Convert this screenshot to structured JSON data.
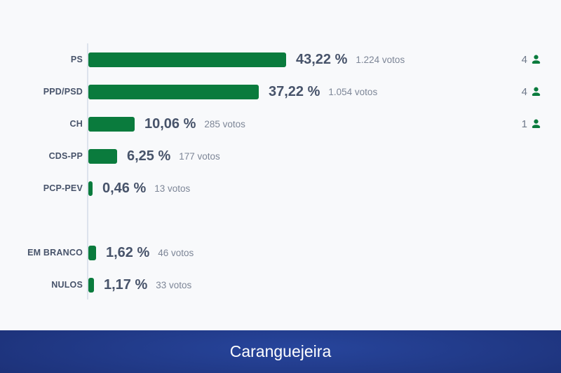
{
  "banner": {
    "title": "Caranguejeira"
  },
  "colors": {
    "background": "#f8f9fb",
    "bar_green": "#0a7b3d",
    "text_slate": "#47536a",
    "text_muted": "#7d8697",
    "axis_line": "#dde3ec",
    "banner_navy_center": "#27459c",
    "banner_navy_edge": "#16235a",
    "banner_text": "#ffffff"
  },
  "chart_data": {
    "type": "bar",
    "orientation": "horizontal",
    "unit": "%",
    "title": "Caranguejeira",
    "xlim": [
      0,
      46
    ],
    "grid": false,
    "legend": false,
    "bar_color": "#0a7b3d",
    "categories": [
      "PS",
      "PPD/PSD",
      "CH",
      "CDS-PP",
      "PCP-PEV",
      "EM BRANCO",
      "NULOS"
    ],
    "values": [
      43.22,
      37.22,
      10.06,
      6.25,
      0.46,
      1.62,
      1.17
    ],
    "rows": [
      {
        "party": "PS",
        "percent": 43.22,
        "percent_label": "43,22 %",
        "votes": 1224,
        "votes_label": "1.224 votos",
        "mandates": 4,
        "gap_before": false
      },
      {
        "party": "PPD/PSD",
        "percent": 37.22,
        "percent_label": "37,22 %",
        "votes": 1054,
        "votes_label": "1.054 votos",
        "mandates": 4,
        "gap_before": false
      },
      {
        "party": "CH",
        "percent": 10.06,
        "percent_label": "10,06 %",
        "votes": 285,
        "votes_label": "285 votos",
        "mandates": 1,
        "gap_before": false
      },
      {
        "party": "CDS-PP",
        "percent": 6.25,
        "percent_label": "6,25 %",
        "votes": 177,
        "votes_label": "177 votos",
        "mandates": null,
        "gap_before": false
      },
      {
        "party": "PCP-PEV",
        "percent": 0.46,
        "percent_label": "0,46 %",
        "votes": 13,
        "votes_label": "13 votos",
        "mandates": null,
        "gap_before": false
      },
      {
        "party": "EM BRANCO",
        "percent": 1.62,
        "percent_label": "1,62 %",
        "votes": 46,
        "votes_label": "46 votos",
        "mandates": null,
        "gap_before": true
      },
      {
        "party": "NULOS",
        "percent": 1.17,
        "percent_label": "1,17 %",
        "votes": 33,
        "votes_label": "33 votos",
        "mandates": null,
        "gap_before": false
      }
    ]
  }
}
